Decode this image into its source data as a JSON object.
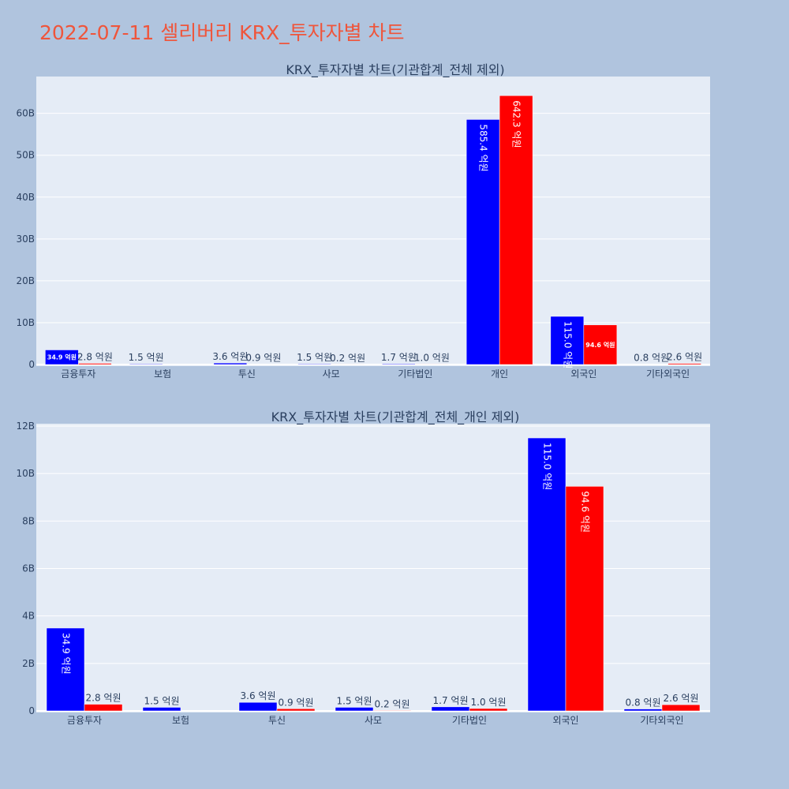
{
  "title": "2022-07-11 셀리버리 KRX_투자자별 차트",
  "colors": {
    "buy": "#0000ff",
    "sell": "#ff0000",
    "plot_bg": "#e5ecf6",
    "page_bg": "#b0c4de",
    "title": "#ef553b"
  },
  "chart_data": [
    {
      "type": "bar",
      "title": "KRX_투자자별 차트(기관합계_전체 제외)",
      "categories": [
        "금융투자",
        "보험",
        "투신",
        "사모",
        "기타법인",
        "개인",
        "외국인",
        "기타외국인"
      ],
      "series": [
        {
          "values": [
            3.49,
            0.15,
            0.36,
            0.15,
            0.17,
            58.54,
            11.5,
            0.08
          ],
          "labels": [
            "34.9 억원",
            "1.5 억원",
            "3.6 억원",
            "1.5 억원",
            "1.7 억원",
            "585.4 억원",
            "115.0 억원",
            "0.8 억원"
          ]
        },
        {
          "values": [
            0.28,
            0,
            0.09,
            0.02,
            0.1,
            64.23,
            9.46,
            0.26
          ],
          "labels": [
            "2.8 억원",
            "",
            "0.9 억원",
            "0.2 억원",
            "1.0 억원",
            "642.3 억원",
            "94.6 억원",
            "2.6 억원"
          ]
        }
      ],
      "unit": "B",
      "ylim": [
        0,
        68.8
      ],
      "yticks": [
        0,
        10,
        20,
        30,
        40,
        50,
        60
      ],
      "ytick_labels": [
        "0",
        "10B",
        "20B",
        "30B",
        "40B",
        "50B",
        "60B"
      ],
      "grid": true
    },
    {
      "type": "bar",
      "title": "KRX_투자자별 차트(기관합계_전체_개인 제외)",
      "categories": [
        "금융투자",
        "보험",
        "투신",
        "사모",
        "기타법인",
        "외국인",
        "기타외국인"
      ],
      "series": [
        {
          "values": [
            3.49,
            0.15,
            0.36,
            0.15,
            0.17,
            11.5,
            0.08
          ],
          "labels": [
            "34.9 억원",
            "1.5 억원",
            "3.6 억원",
            "1.5 억원",
            "1.7 억원",
            "115.0 억원",
            "0.8 억원"
          ]
        },
        {
          "values": [
            0.28,
            0,
            0.09,
            0.02,
            0.1,
            9.46,
            0.26
          ],
          "labels": [
            "2.8 억원",
            "",
            "0.9 억원",
            "0.2 억원",
            "1.0 억원",
            "94.6 억원",
            "2.6 억원"
          ]
        }
      ],
      "unit": "B",
      "ylim": [
        0,
        12.1
      ],
      "yticks": [
        0,
        2,
        4,
        6,
        8,
        10,
        12
      ],
      "ytick_labels": [
        "0",
        "2B",
        "4B",
        "6B",
        "8B",
        "10B",
        "12B"
      ],
      "grid": true
    }
  ]
}
